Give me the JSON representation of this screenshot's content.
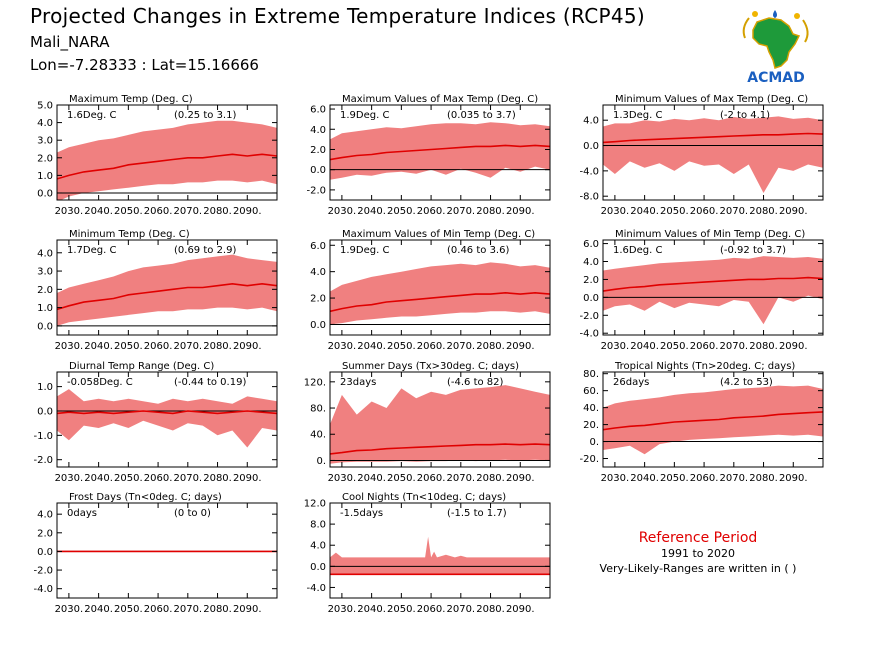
{
  "header": {
    "title": "Projected Changes in Extreme Temperature Indices (RCP45)",
    "station": "Mali_NARA",
    "coords": "Lon=-7.28333 : Lat=15.16666"
  },
  "logo": {
    "text": "ACMAD",
    "icon": "africa-map-logo"
  },
  "reference": {
    "title": "Reference Period",
    "years": "1991 to 2020",
    "note": "Very-Likely-Ranges are written in ( )"
  },
  "colors": {
    "line": "#e00000",
    "band": "#f08080",
    "zero": "#000000"
  },
  "x_ticks": [
    "2030.",
    "2040.",
    "2050.",
    "2060.",
    "2070.",
    "2080.",
    "2090."
  ],
  "chart_data": [
    {
      "type": "area",
      "title": "Maximum Temp (Deg. C)",
      "summary": "1.6Deg. C",
      "range": "(0.25 to 3.1)",
      "xlim": [
        2026,
        2100
      ],
      "ylim": [
        -0.4,
        5.0
      ],
      "yticks": [
        0.0,
        1.0,
        2.0,
        3.0,
        4.0,
        5.0
      ],
      "ytick_labels": [
        "0.0",
        "1.0",
        "2.0",
        "3.0",
        "4.0",
        "5.0"
      ],
      "x": [
        2026,
        2030,
        2035,
        2040,
        2045,
        2050,
        2055,
        2060,
        2065,
        2070,
        2075,
        2080,
        2085,
        2090,
        2095,
        2100
      ],
      "median": [
        0.8,
        1.0,
        1.2,
        1.3,
        1.4,
        1.6,
        1.7,
        1.8,
        1.9,
        2.0,
        2.0,
        2.1,
        2.2,
        2.1,
        2.2,
        2.1
      ],
      "low": [
        -0.5,
        -0.2,
        0.0,
        0.1,
        0.2,
        0.3,
        0.4,
        0.5,
        0.5,
        0.6,
        0.6,
        0.7,
        0.7,
        0.6,
        0.7,
        0.5
      ],
      "high": [
        2.3,
        2.6,
        2.8,
        3.0,
        3.1,
        3.3,
        3.5,
        3.6,
        3.7,
        3.9,
        4.0,
        4.1,
        4.1,
        4.0,
        3.9,
        3.7
      ]
    },
    {
      "type": "area",
      "title": "Maximum Values of Max Temp (Deg. C)",
      "summary": "1.9Deg. C",
      "range": "(0.035 to 3.7)",
      "xlim": [
        2026,
        2100
      ],
      "ylim": [
        -3.0,
        6.4
      ],
      "yticks": [
        -2.0,
        0.0,
        2.0,
        4.0,
        6.0
      ],
      "ytick_labels": [
        "-2.0",
        "0.0",
        "2.0",
        "4.0",
        "6.0"
      ],
      "x": [
        2026,
        2030,
        2035,
        2040,
        2045,
        2050,
        2055,
        2060,
        2065,
        2070,
        2075,
        2080,
        2085,
        2090,
        2095,
        2100
      ],
      "median": [
        1.0,
        1.2,
        1.4,
        1.5,
        1.7,
        1.8,
        1.9,
        2.0,
        2.1,
        2.2,
        2.3,
        2.3,
        2.4,
        2.3,
        2.4,
        2.3
      ],
      "low": [
        -1.0,
        -0.8,
        -0.5,
        -0.6,
        -0.3,
        -0.2,
        -0.4,
        0.0,
        -0.5,
        0.1,
        -0.3,
        -0.8,
        0.2,
        -0.2,
        0.3,
        0.0
      ],
      "high": [
        3.0,
        3.6,
        3.8,
        4.0,
        4.2,
        4.1,
        4.3,
        4.5,
        4.6,
        4.6,
        4.5,
        4.7,
        4.6,
        4.4,
        4.5,
        4.3
      ]
    },
    {
      "type": "area",
      "title": "Minimum Values of Max Temp (Deg. C)",
      "summary": "1.3Deg. C",
      "range": "(-2 to 4.1)",
      "xlim": [
        2026,
        2100
      ],
      "ylim": [
        -8.6,
        6.4
      ],
      "yticks": [
        -8.0,
        -4.0,
        0.0,
        4.0
      ],
      "ytick_labels": [
        "-8.0",
        "-4.0",
        "0.0",
        "4.0"
      ],
      "x": [
        2026,
        2030,
        2035,
        2040,
        2045,
        2050,
        2055,
        2060,
        2065,
        2070,
        2075,
        2080,
        2085,
        2090,
        2095,
        2100
      ],
      "median": [
        0.5,
        0.6,
        0.8,
        0.9,
        1.0,
        1.1,
        1.2,
        1.3,
        1.4,
        1.5,
        1.6,
        1.7,
        1.7,
        1.8,
        1.9,
        1.8
      ],
      "low": [
        -3.0,
        -4.5,
        -2.5,
        -3.5,
        -2.8,
        -4.0,
        -2.5,
        -3.2,
        -3.0,
        -4.5,
        -3.0,
        -7.5,
        -3.5,
        -4.0,
        -3.0,
        -3.5
      ],
      "high": [
        3.0,
        3.5,
        3.5,
        4.0,
        3.8,
        4.2,
        4.0,
        4.3,
        4.0,
        4.5,
        4.2,
        4.4,
        4.6,
        4.2,
        4.4,
        4.0
      ]
    },
    {
      "type": "area",
      "title": "Minimum Temp (Deg. C)",
      "summary": "1.7Deg. C",
      "range": "(0.69 to 2.9)",
      "xlim": [
        2026,
        2100
      ],
      "ylim": [
        -0.5,
        4.7
      ],
      "yticks": [
        0.0,
        1.0,
        2.0,
        3.0,
        4.0
      ],
      "ytick_labels": [
        "0.0",
        "1.0",
        "2.0",
        "3.0",
        "4.0"
      ],
      "x": [
        2026,
        2030,
        2035,
        2040,
        2045,
        2050,
        2055,
        2060,
        2065,
        2070,
        2075,
        2080,
        2085,
        2090,
        2095,
        2100
      ],
      "median": [
        0.9,
        1.1,
        1.3,
        1.4,
        1.5,
        1.7,
        1.8,
        1.9,
        2.0,
        2.1,
        2.1,
        2.2,
        2.3,
        2.2,
        2.3,
        2.2
      ],
      "low": [
        0.0,
        0.2,
        0.3,
        0.4,
        0.5,
        0.6,
        0.7,
        0.8,
        0.8,
        0.9,
        0.9,
        1.0,
        1.0,
        0.9,
        1.0,
        0.8
      ],
      "high": [
        1.8,
        2.1,
        2.3,
        2.5,
        2.7,
        3.0,
        3.2,
        3.3,
        3.4,
        3.6,
        3.7,
        3.8,
        3.9,
        3.7,
        3.6,
        3.5
      ]
    },
    {
      "type": "area",
      "title": "Maximum Values of Min Temp (Deg. C)",
      "summary": "1.9Deg. C",
      "range": "(0.46 to 3.6)",
      "xlim": [
        2026,
        2100
      ],
      "ylim": [
        -0.8,
        6.4
      ],
      "yticks": [
        0.0,
        2.0,
        4.0,
        6.0
      ],
      "ytick_labels": [
        "0.0",
        "2.0",
        "4.0",
        "6.0"
      ],
      "x": [
        2026,
        2030,
        2035,
        2040,
        2045,
        2050,
        2055,
        2060,
        2065,
        2070,
        2075,
        2080,
        2085,
        2090,
        2095,
        2100
      ],
      "median": [
        1.0,
        1.2,
        1.4,
        1.5,
        1.7,
        1.8,
        1.9,
        2.0,
        2.1,
        2.2,
        2.3,
        2.3,
        2.4,
        2.3,
        2.4,
        2.3
      ],
      "low": [
        0.0,
        0.1,
        0.3,
        0.4,
        0.5,
        0.6,
        0.6,
        0.7,
        0.8,
        0.9,
        0.9,
        1.0,
        1.0,
        0.9,
        1.0,
        0.8
      ],
      "high": [
        2.5,
        3.0,
        3.3,
        3.6,
        3.8,
        4.0,
        4.2,
        4.4,
        4.5,
        4.6,
        4.5,
        4.7,
        4.6,
        4.4,
        4.5,
        4.3
      ]
    },
    {
      "type": "area",
      "title": "Minimum Values of Min Temp (Deg. C)",
      "summary": "1.6Deg. C",
      "range": "(-0.92 to 3.7)",
      "xlim": [
        2026,
        2100
      ],
      "ylim": [
        -4.2,
        6.4
      ],
      "yticks": [
        -4.0,
        -2.0,
        0.0,
        2.0,
        4.0,
        6.0
      ],
      "ytick_labels": [
        "-4.0",
        "-2.0",
        "0.0",
        "2.0",
        "4.0",
        "6.0"
      ],
      "x": [
        2026,
        2030,
        2035,
        2040,
        2045,
        2050,
        2055,
        2060,
        2065,
        2070,
        2075,
        2080,
        2085,
        2090,
        2095,
        2100
      ],
      "median": [
        0.7,
        0.9,
        1.1,
        1.2,
        1.4,
        1.5,
        1.6,
        1.7,
        1.8,
        1.9,
        2.0,
        2.0,
        2.1,
        2.1,
        2.2,
        2.1
      ],
      "low": [
        -1.5,
        -1.0,
        -0.8,
        -1.5,
        -0.5,
        -1.2,
        -0.6,
        -0.8,
        -1.0,
        -0.3,
        -0.5,
        -3.0,
        0.0,
        -0.5,
        0.2,
        -0.2
      ],
      "high": [
        3.0,
        3.2,
        3.4,
        3.6,
        3.8,
        3.9,
        4.0,
        4.1,
        4.2,
        4.4,
        4.3,
        4.6,
        4.5,
        4.4,
        4.5,
        4.3
      ]
    },
    {
      "type": "area",
      "title": "Diurnal Temp Range (Deg. C)",
      "summary": "-0.058Deg. C",
      "range": "(-0.44 to 0.19)",
      "xlim": [
        2026,
        2100
      ],
      "ylim": [
        -2.3,
        1.6
      ],
      "yticks": [
        -2.0,
        -1.0,
        0.0,
        1.0
      ],
      "ytick_labels": [
        "-2.0",
        "-1.0",
        "0.0",
        "1.0"
      ],
      "x": [
        2026,
        2030,
        2035,
        2040,
        2045,
        2050,
        2055,
        2060,
        2065,
        2070,
        2075,
        2080,
        2085,
        2090,
        2095,
        2100
      ],
      "median": [
        -0.1,
        -0.05,
        -0.1,
        -0.05,
        -0.1,
        -0.05,
        0.0,
        -0.05,
        -0.1,
        0.0,
        -0.05,
        -0.1,
        -0.05,
        0.0,
        -0.05,
        -0.1
      ],
      "low": [
        -0.8,
        -1.2,
        -0.6,
        -0.7,
        -0.5,
        -0.7,
        -0.4,
        -0.6,
        -0.8,
        -0.5,
        -0.6,
        -1.0,
        -0.8,
        -1.5,
        -0.7,
        -0.8
      ],
      "high": [
        0.6,
        0.9,
        0.4,
        0.5,
        0.4,
        0.5,
        0.4,
        0.3,
        0.5,
        0.4,
        0.5,
        0.4,
        0.3,
        0.6,
        0.5,
        0.4
      ]
    },
    {
      "type": "area",
      "title": "Summer Days (Tx>30deg. C; days)",
      "summary": "23days",
      "range": "(-4.6 to 82)",
      "xlim": [
        2026,
        2100
      ],
      "ylim": [
        -10,
        135
      ],
      "yticks": [
        0,
        40,
        80,
        120
      ],
      "ytick_labels": [
        "0.",
        "40.",
        "80.",
        "120."
      ],
      "x": [
        2026,
        2030,
        2035,
        2040,
        2045,
        2050,
        2055,
        2060,
        2065,
        2070,
        2075,
        2080,
        2085,
        2090,
        2095,
        2100
      ],
      "median": [
        10,
        12,
        15,
        16,
        18,
        19,
        20,
        21,
        22,
        23,
        24,
        24,
        25,
        24,
        25,
        24
      ],
      "low": [
        -5,
        -3,
        -2,
        -2,
        -2,
        -1,
        -2,
        -1,
        -1,
        0,
        -1,
        0,
        1,
        0,
        1,
        0
      ],
      "high": [
        55,
        100,
        70,
        90,
        80,
        110,
        95,
        105,
        100,
        108,
        110,
        112,
        115,
        110,
        105,
        100
      ]
    },
    {
      "type": "area",
      "title": "Tropical Nights (Tn>20deg. C; days)",
      "summary": "26days",
      "range": "(4.2 to 53)",
      "xlim": [
        2026,
        2100
      ],
      "ylim": [
        -30,
        82
      ],
      "yticks": [
        -20,
        0,
        20,
        40,
        60,
        80
      ],
      "ytick_labels": [
        "-20.",
        "0.",
        "20.",
        "40.",
        "60.",
        "80."
      ],
      "x": [
        2026,
        2030,
        2035,
        2040,
        2045,
        2050,
        2055,
        2060,
        2065,
        2070,
        2075,
        2080,
        2085,
        2090,
        2095,
        2100
      ],
      "median": [
        14,
        16,
        18,
        19,
        21,
        23,
        24,
        25,
        26,
        28,
        29,
        30,
        32,
        33,
        34,
        35
      ],
      "low": [
        -10,
        -8,
        -5,
        -15,
        -3,
        0,
        2,
        3,
        4,
        5,
        6,
        7,
        8,
        7,
        8,
        6
      ],
      "high": [
        40,
        45,
        48,
        50,
        52,
        55,
        57,
        58,
        60,
        62,
        63,
        64,
        66,
        65,
        66,
        62
      ]
    },
    {
      "type": "area",
      "title": "Frost Days (Tn<0deg. C; days)",
      "summary": "0days",
      "range": "(0 to 0)",
      "xlim": [
        2026,
        2100
      ],
      "ylim": [
        -5.0,
        5.2
      ],
      "yticks": [
        -4.0,
        -2.0,
        0.0,
        2.0,
        4.0
      ],
      "ytick_labels": [
        "-4.0",
        "-2.0",
        "0.0",
        "2.0",
        "4.0"
      ],
      "x": [
        2026,
        2100
      ],
      "median": [
        0,
        0
      ],
      "low": [
        0,
        0
      ],
      "high": [
        0,
        0
      ]
    },
    {
      "type": "area",
      "title": "Cool Nights (Tn<10deg. C; days)",
      "summary": "-1.5days",
      "range": "(-1.5 to 1.7)",
      "xlim": [
        2026,
        2100
      ],
      "ylim": [
        -6.0,
        12.0
      ],
      "yticks": [
        -4.0,
        0.0,
        4.0,
        8.0,
        12.0
      ],
      "ytick_labels": [
        "-4.0",
        "0.0",
        "4.0",
        "8.0",
        "12.0"
      ],
      "x": [
        2026,
        2028,
        2030,
        2035,
        2040,
        2045,
        2050,
        2055,
        2058,
        2059,
        2060,
        2061,
        2062,
        2065,
        2068,
        2070,
        2072,
        2075,
        2080,
        2090,
        2100
      ],
      "median": [
        -1.5,
        -1.5,
        -1.5,
        -1.5,
        -1.5,
        -1.5,
        -1.5,
        -1.5,
        -1.5,
        -1.5,
        -1.5,
        -1.5,
        -1.5,
        -1.5,
        -1.5,
        -1.5,
        -1.5,
        -1.5,
        -1.5,
        -1.5,
        -1.5
      ],
      "low": [
        -1.5,
        -1.5,
        -1.5,
        -1.5,
        -1.5,
        -1.5,
        -1.5,
        -1.5,
        -1.5,
        -1.5,
        -1.5,
        -1.5,
        -1.5,
        -1.5,
        -1.5,
        -1.5,
        -1.5,
        -1.5,
        -1.5,
        -1.5,
        -1.5
      ],
      "high": [
        1.7,
        2.6,
        1.7,
        1.7,
        1.7,
        1.7,
        1.7,
        1.7,
        1.7,
        5.6,
        1.7,
        2.8,
        1.7,
        2.2,
        1.7,
        2.0,
        1.7,
        1.7,
        1.7,
        1.7,
        1.7
      ]
    }
  ]
}
